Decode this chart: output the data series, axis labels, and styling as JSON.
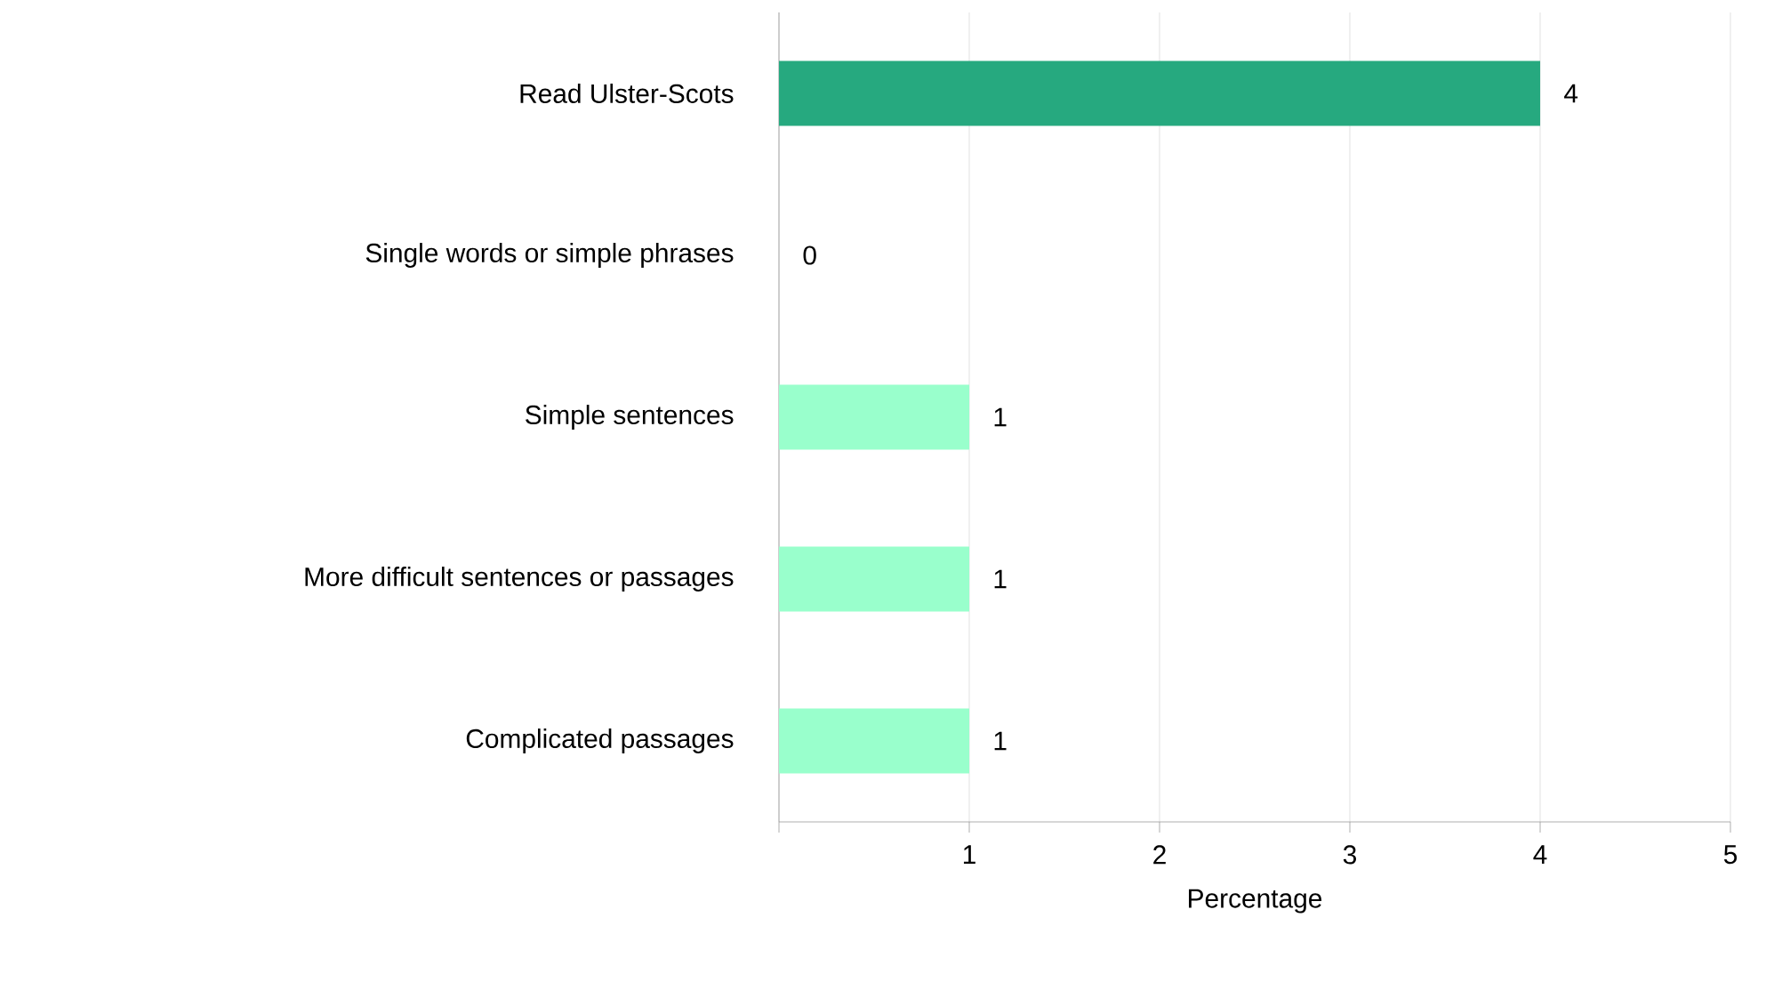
{
  "chart_data": {
    "type": "bar",
    "orientation": "horizontal",
    "xlabel": "Percentage",
    "categories": [
      "Read Ulster-Scots",
      "Single words or simple phrases",
      "Simple sentences",
      "More difficult sentences or passages",
      "Complicated passages"
    ],
    "values": [
      4,
      0,
      1,
      1,
      1
    ],
    "colors": [
      "#26a97f",
      "#99ffcc",
      "#99ffcc",
      "#99ffcc",
      "#99ffcc"
    ],
    "xlim": [
      0,
      5
    ],
    "xticks": [
      {
        "value": 0,
        "label": null
      },
      1,
      2,
      3,
      4,
      5
    ],
    "grid": "x",
    "data_labels": true
  }
}
